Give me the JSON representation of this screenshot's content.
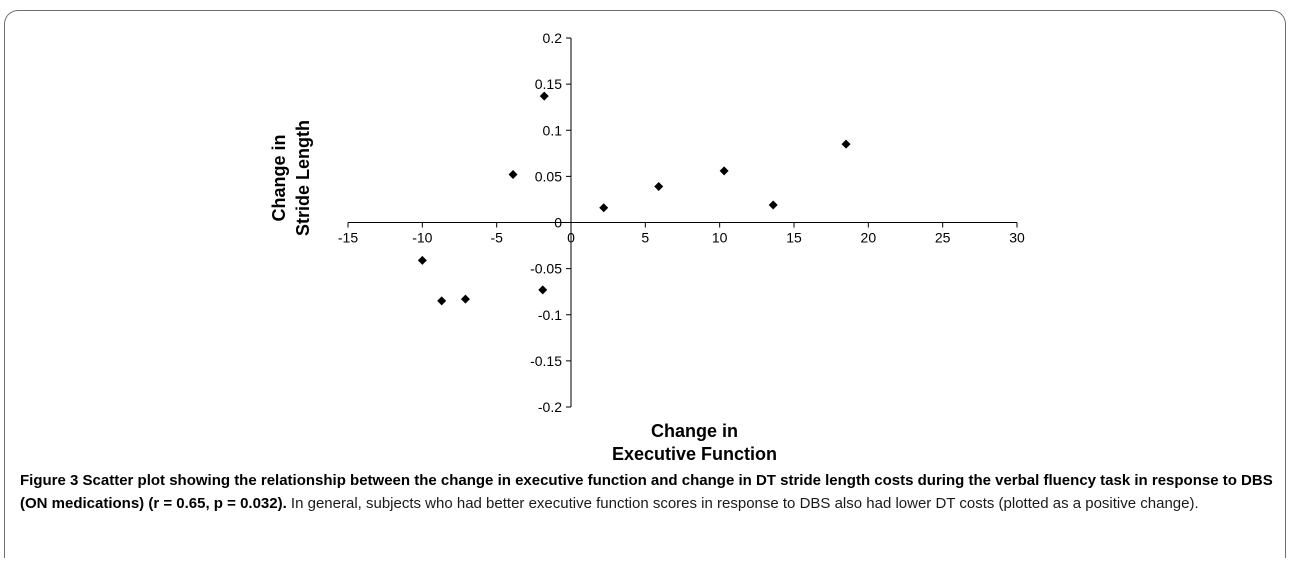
{
  "caption": {
    "title": "Figure 3 Scatter plot showing the relationship between the change in executive function and change in DT stride length costs during the verbal fluency task in response to DBS (ON medications) (r = 0.65, p = 0.032).",
    "body": " In general, subjects who had better executive function scores in response to DBS also had lower DT costs (plotted as a positive change)."
  },
  "chart_data": {
    "type": "scatter",
    "xlabel": [
      "Change in",
      "Executive Function"
    ],
    "ylabel": [
      "Change in",
      "Stride Length"
    ],
    "xlim": [
      -15,
      30
    ],
    "ylim": [
      -0.2,
      0.2
    ],
    "x_ticks": [
      "-15",
      "-10",
      "-5",
      "0",
      "5",
      "10",
      "15",
      "20",
      "25",
      "30"
    ],
    "y_ticks": [
      "0.2",
      "0.15",
      "0.1",
      "0.05",
      "0",
      "-0.05",
      "-0.1",
      "-0.15",
      "-0.2"
    ],
    "grid": false,
    "marker": "diamond",
    "marker_color": "#000000",
    "points": [
      {
        "x": -10,
        "y": -0.041
      },
      {
        "x": -8.7,
        "y": -0.085
      },
      {
        "x": -7.1,
        "y": -0.083
      },
      {
        "x": -3.9,
        "y": 0.052
      },
      {
        "x": -1.8,
        "y": 0.137
      },
      {
        "x": -1.9,
        "y": -0.073
      },
      {
        "x": 2.2,
        "y": 0.016
      },
      {
        "x": 5.9,
        "y": 0.039
      },
      {
        "x": 10.3,
        "y": 0.056
      },
      {
        "x": 13.6,
        "y": 0.019
      },
      {
        "x": 18.5,
        "y": 0.085
      }
    ]
  }
}
